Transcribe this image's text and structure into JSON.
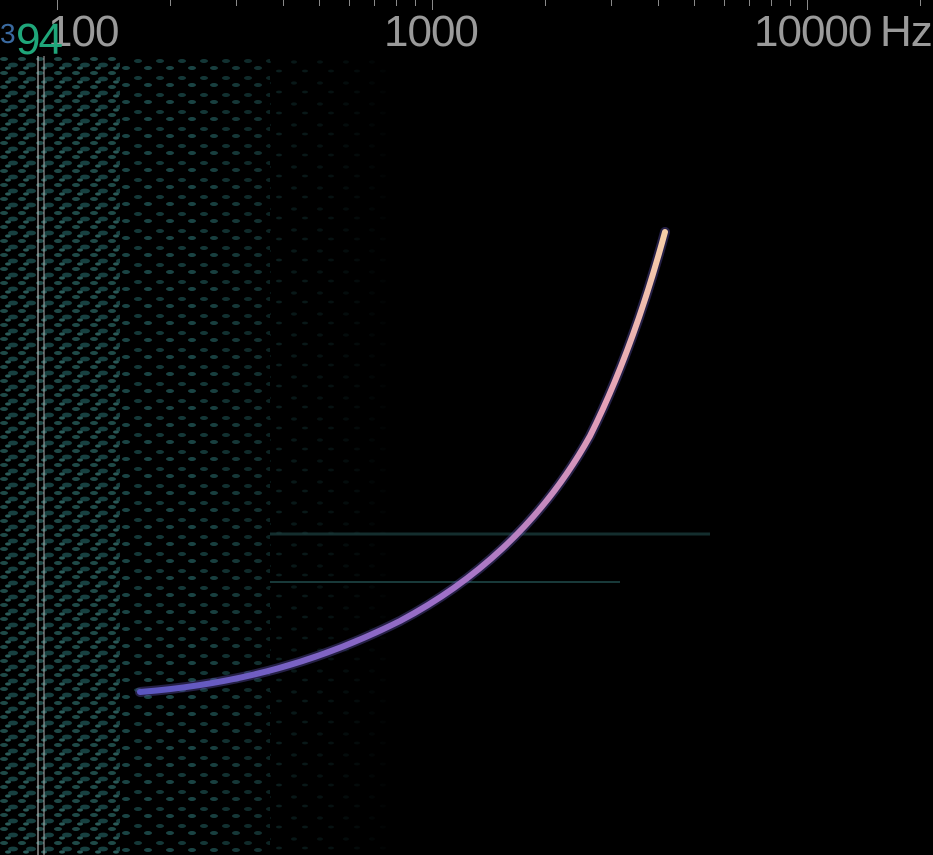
{
  "app": {
    "view": "spectrogram"
  },
  "axis": {
    "unit": "Hz",
    "scale": "log",
    "labels": [
      "100",
      "1000",
      "10000"
    ],
    "unit_label": "Hz"
  },
  "readout": {
    "peak_small": "3",
    "peak_big": "94"
  },
  "colors": {
    "background": "#000000",
    "axis_text": "#9a9a9a",
    "noise": "#1f4a48",
    "chirp_low": "#6a5cc8",
    "chirp_high": "#f0c0a8",
    "peak_readout": "#1fa67a"
  }
}
